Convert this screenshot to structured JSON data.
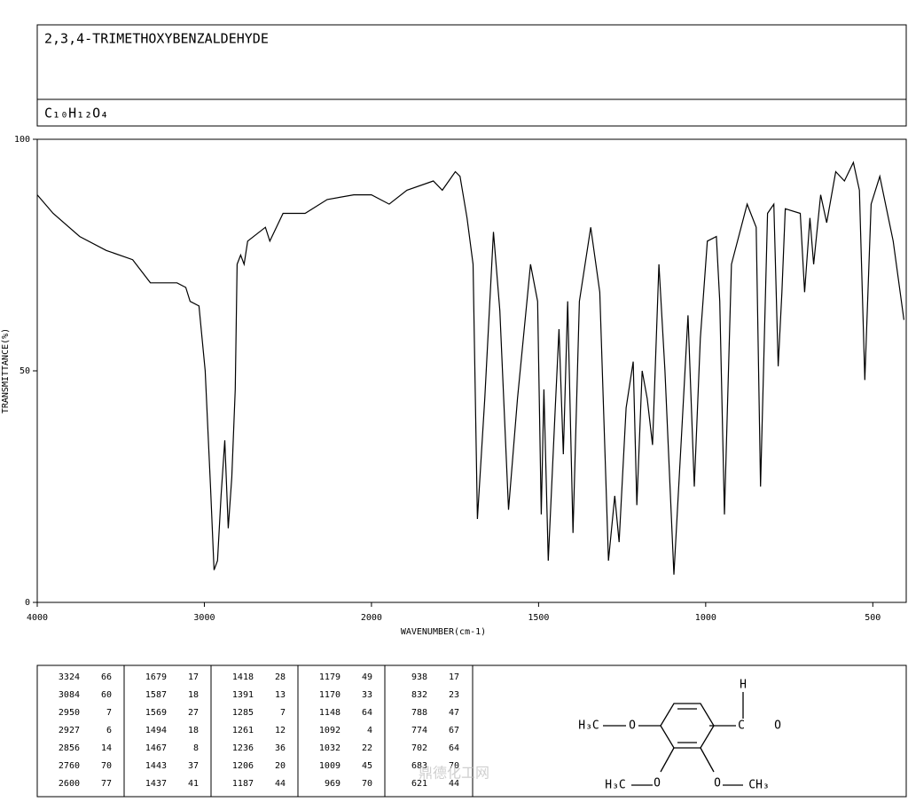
{
  "header": {
    "title": "2,3,4-TRIMETHOXYBENZALDEHYDE",
    "formula": "C₁₀H₁₂O₄"
  },
  "chart_data": {
    "type": "line",
    "x_label": "WAVENUMBER(cm-1)",
    "y_label": "TRANSMITTANCE(%)",
    "xlim": [
      4000,
      400
    ],
    "x_expand_below": 2000,
    "x_expand_factor": 2,
    "xticks": [
      4000,
      3000,
      2000,
      1500,
      1000,
      500
    ],
    "ylim": [
      0,
      100
    ],
    "yticks": [
      0,
      50,
      100
    ],
    "color": "#000000",
    "x": [
      4000,
      3905,
      3746,
      3587,
      3429,
      3323,
      3164,
      3111,
      3085,
      3032,
      2995,
      2963,
      2942,
      2921,
      2900,
      2878,
      2857,
      2836,
      2815,
      2804,
      2783,
      2762,
      2741,
      2635,
      2608,
      2529,
      2397,
      2265,
      2106,
      2000,
      1947,
      1894,
      1815,
      1788,
      1749,
      1735,
      1714,
      1696,
      1683,
      1661,
      1635,
      1616,
      1590,
      1563,
      1524,
      1503,
      1492,
      1484,
      1471,
      1450,
      1439,
      1426,
      1413,
      1397,
      1378,
      1344,
      1317,
      1291,
      1272,
      1259,
      1238,
      1217,
      1206,
      1190,
      1175,
      1159,
      1140,
      1122,
      1095,
      1074,
      1053,
      1034,
      1016,
      995,
      968,
      958,
      944,
      923,
      876,
      849,
      836,
      815,
      796,
      783,
      772,
      762,
      717,
      704,
      688,
      677,
      656,
      638,
      611,
      585,
      558,
      540,
      524,
      505,
      479,
      439,
      407
    ],
    "values": [
      88,
      84,
      79,
      76,
      74,
      69,
      69,
      68,
      65,
      64,
      50,
      25,
      7,
      9,
      23,
      35,
      16,
      27,
      46,
      73,
      75,
      73,
      78,
      81,
      78,
      84,
      84,
      87,
      88,
      88,
      86,
      89,
      91,
      89,
      93,
      92,
      83,
      73,
      18,
      44,
      80,
      63,
      20,
      44,
      73,
      65,
      19,
      46,
      9,
      42,
      59,
      32,
      65,
      15,
      65,
      81,
      67,
      9,
      23,
      13,
      42,
      52,
      21,
      50,
      44,
      34,
      73,
      50,
      6,
      34,
      62,
      25,
      57,
      78,
      79,
      65,
      19,
      73,
      86,
      81,
      25,
      84,
      86,
      51,
      67,
      85,
      84,
      67,
      83,
      73,
      88,
      82,
      93,
      91,
      95,
      89,
      48,
      86,
      92,
      78,
      61
    ]
  },
  "peak_table": {
    "groups": [
      [
        [
          3324,
          66
        ],
        [
          3084,
          60
        ],
        [
          2950,
          7
        ],
        [
          2927,
          6
        ],
        [
          2856,
          14
        ],
        [
          2760,
          70
        ],
        [
          2600,
          77
        ]
      ],
      [
        [
          1679,
          17
        ],
        [
          1587,
          18
        ],
        [
          1569,
          27
        ],
        [
          1494,
          18
        ],
        [
          1467,
          8
        ],
        [
          1443,
          37
        ],
        [
          1437,
          41
        ]
      ],
      [
        [
          1418,
          28
        ],
        [
          1391,
          13
        ],
        [
          1285,
          7
        ],
        [
          1261,
          12
        ],
        [
          1236,
          36
        ],
        [
          1206,
          20
        ],
        [
          1187,
          44
        ]
      ],
      [
        [
          1179,
          49
        ],
        [
          1170,
          33
        ],
        [
          1148,
          64
        ],
        [
          1092,
          4
        ],
        [
          1032,
          22
        ],
        [
          1009,
          45
        ],
        [
          969,
          70
        ]
      ],
      [
        [
          938,
          17
        ],
        [
          832,
          23
        ],
        [
          788,
          47
        ],
        [
          774,
          67
        ],
        [
          702,
          64
        ],
        [
          683,
          70
        ],
        [
          621,
          44
        ]
      ]
    ]
  },
  "structure": {
    "labels": [
      "H",
      "C",
      "O",
      "H₃C",
      "O",
      "H₃C",
      "O",
      "O",
      "CH₃"
    ]
  },
  "watermark": "鼎德化工网"
}
